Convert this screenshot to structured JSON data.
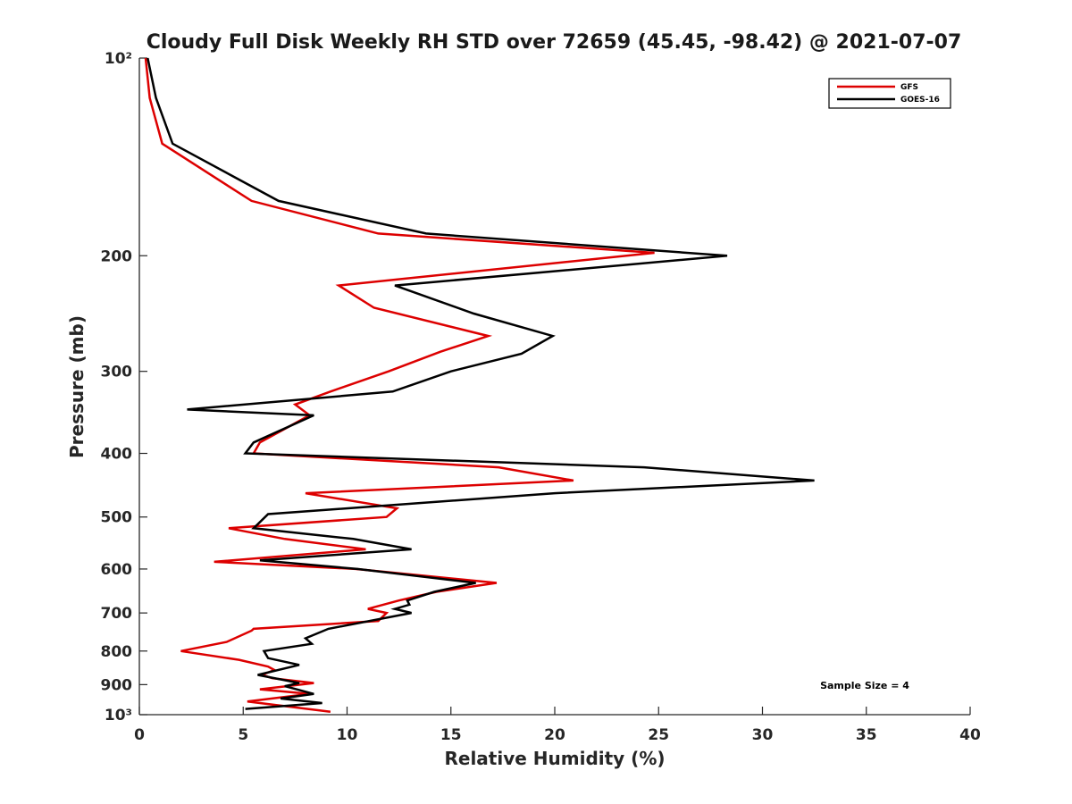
{
  "chart_data": {
    "type": "line",
    "title": "Cloudy Full Disk Weekly RH STD over 72659 (45.45, -98.42) @ 2021-07-07",
    "xlabel": "Relative Humidity (%)",
    "ylabel": "Pressure (mb)",
    "xlim": [
      0,
      40
    ],
    "ylim": [
      100,
      1000
    ],
    "y_scale": "log",
    "y_reversed": true,
    "x_ticks": [
      0,
      5,
      10,
      15,
      20,
      25,
      30,
      35,
      40
    ],
    "x_tick_labels": [
      "0",
      "5",
      "10",
      "15",
      "20",
      "25",
      "30",
      "35",
      "40"
    ],
    "y_ticks": [
      100,
      200,
      300,
      400,
      500,
      600,
      700,
      800,
      900,
      1000
    ],
    "y_tick_labels": [
      "10²",
      "200",
      "300",
      "400",
      "500",
      "600",
      "700",
      "800",
      "900",
      "10³"
    ],
    "grid": false,
    "legend_position": "top-right",
    "annotation": "Sample Size = 4",
    "series": [
      {
        "name": "GFS",
        "color": "#dd0000",
        "points": [
          [
            0.3,
            100
          ],
          [
            0.5,
            115
          ],
          [
            1.1,
            135
          ],
          [
            5.4,
            165
          ],
          [
            11.5,
            185
          ],
          [
            24.8,
            198
          ],
          [
            9.6,
            222
          ],
          [
            11.3,
            240
          ],
          [
            16.8,
            265
          ],
          [
            14.5,
            280
          ],
          [
            12.0,
            300
          ],
          [
            9.2,
            322
          ],
          [
            7.5,
            337
          ],
          [
            8.2,
            350
          ],
          [
            5.8,
            385
          ],
          [
            5.5,
            400
          ],
          [
            17.3,
            420
          ],
          [
            20.9,
            440
          ],
          [
            8.0,
            460
          ],
          [
            12.4,
            485
          ],
          [
            11.9,
            500
          ],
          [
            4.3,
            520
          ],
          [
            7.0,
            540
          ],
          [
            10.9,
            560
          ],
          [
            3.6,
            585
          ],
          [
            10.4,
            600
          ],
          [
            17.2,
            630
          ],
          [
            14.3,
            650
          ],
          [
            12.5,
            670
          ],
          [
            11.0,
            690
          ],
          [
            11.9,
            700
          ],
          [
            11.5,
            720
          ],
          [
            5.5,
            740
          ],
          [
            5.4,
            745
          ],
          [
            4.2,
            775
          ],
          [
            2.0,
            800
          ],
          [
            4.8,
            825
          ],
          [
            6.2,
            845
          ],
          [
            6.5,
            855
          ],
          [
            5.9,
            870
          ],
          [
            6.4,
            880
          ],
          [
            8.4,
            895
          ],
          [
            5.8,
            915
          ],
          [
            8.2,
            930
          ],
          [
            5.2,
            955
          ],
          [
            9.2,
            990
          ]
        ]
      },
      {
        "name": "GOES-16",
        "color": "#000000",
        "points": [
          [
            0.4,
            100
          ],
          [
            0.8,
            115
          ],
          [
            1.6,
            135
          ],
          [
            6.7,
            165
          ],
          [
            13.8,
            185
          ],
          [
            28.3,
            200
          ],
          [
            12.3,
            222
          ],
          [
            16.1,
            245
          ],
          [
            19.9,
            265
          ],
          [
            18.4,
            282
          ],
          [
            15.0,
            300
          ],
          [
            12.2,
            322
          ],
          [
            2.3,
            343
          ],
          [
            8.4,
            350
          ],
          [
            5.5,
            385
          ],
          [
            5.1,
            400
          ],
          [
            24.3,
            420
          ],
          [
            32.5,
            440
          ],
          [
            20.0,
            460
          ],
          [
            6.2,
            495
          ],
          [
            5.5,
            520
          ],
          [
            10.3,
            540
          ],
          [
            13.1,
            560
          ],
          [
            5.8,
            582
          ],
          [
            10.5,
            600
          ],
          [
            16.2,
            630
          ],
          [
            14.2,
            650
          ],
          [
            12.9,
            670
          ],
          [
            13.0,
            680
          ],
          [
            12.3,
            690
          ],
          [
            13.1,
            700
          ],
          [
            9.1,
            740
          ],
          [
            8.0,
            765
          ],
          [
            8.3,
            780
          ],
          [
            6.0,
            800
          ],
          [
            6.2,
            820
          ],
          [
            7.7,
            840
          ],
          [
            5.7,
            870
          ],
          [
            7.7,
            895
          ],
          [
            7.0,
            905
          ],
          [
            8.4,
            930
          ],
          [
            6.8,
            945
          ],
          [
            8.8,
            960
          ],
          [
            5.1,
            980
          ]
        ]
      }
    ]
  }
}
